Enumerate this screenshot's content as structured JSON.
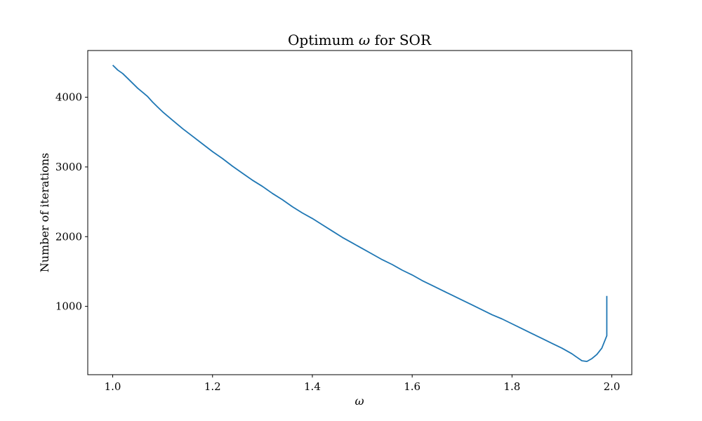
{
  "chart_data": {
    "type": "line",
    "title": "Optimum ω for SOR",
    "xlabel": "ω",
    "ylabel": "Number of iterations",
    "xlim": [
      0.95,
      2.04
    ],
    "ylim": [
      20,
      4670
    ],
    "xticks": [
      1.0,
      1.2,
      1.4,
      1.6,
      1.8,
      2.0
    ],
    "xtick_labels": [
      "1.0",
      "1.2",
      "1.4",
      "1.6",
      "1.8",
      "2.0"
    ],
    "yticks": [
      1000,
      2000,
      3000,
      4000
    ],
    "ytick_labels": [
      "1000",
      "2000",
      "3000",
      "4000"
    ],
    "grid": false,
    "series": [
      {
        "color": "#1f77b4",
        "x": [
          1.0,
          1.01,
          1.02,
          1.03,
          1.04,
          1.05,
          1.06,
          1.07,
          1.08,
          1.09,
          1.1,
          1.12,
          1.14,
          1.16,
          1.18,
          1.2,
          1.22,
          1.24,
          1.26,
          1.28,
          1.3,
          1.32,
          1.34,
          1.36,
          1.38,
          1.4,
          1.42,
          1.44,
          1.46,
          1.48,
          1.5,
          1.52,
          1.54,
          1.56,
          1.58,
          1.6,
          1.62,
          1.64,
          1.66,
          1.68,
          1.7,
          1.72,
          1.74,
          1.76,
          1.78,
          1.8,
          1.82,
          1.84,
          1.86,
          1.88,
          1.9,
          1.91,
          1.92,
          1.93,
          1.94,
          1.95,
          1.96,
          1.97,
          1.98,
          1.99
        ],
        "y": [
          4460,
          4390,
          4340,
          4270,
          4200,
          4130,
          4070,
          4010,
          3930,
          3860,
          3790,
          3670,
          3550,
          3440,
          3330,
          3220,
          3120,
          3010,
          2910,
          2810,
          2720,
          2620,
          2530,
          2430,
          2340,
          2260,
          2170,
          2080,
          1990,
          1910,
          1830,
          1750,
          1670,
          1600,
          1520,
          1450,
          1370,
          1300,
          1230,
          1160,
          1090,
          1020,
          950,
          880,
          820,
          750,
          680,
          610,
          540,
          470,
          400,
          360,
          320,
          270,
          220,
          210,
          250,
          310,
          400,
          580
        ]
      }
    ],
    "tail": {
      "x": 1.99,
      "y_from": 580,
      "y_to": 1150
    }
  }
}
